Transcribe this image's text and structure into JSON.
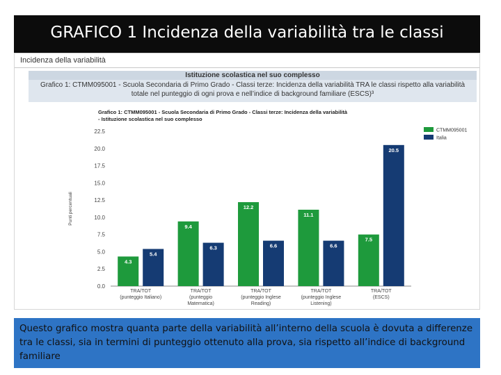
{
  "slide": {
    "title": "GRAFICO 1 Incidenza della variabilità tra le classi",
    "caption": "Questo grafico mostra quanta parte della variabilità all’interno della scuola è dovuta a differenze tra le classi, sia in termini di punteggio ottenuto alla prova, sia rispetto all’indice di background familiare"
  },
  "document": {
    "section_label": "Incidenza della variabilità",
    "header_top": "Istituzione scolastica nel suo complesso",
    "header_desc": "Grafico 1: CTMM095001 - Scuola Secondaria di Primo Grado - Classi terze: Incidenza della variabilità TRA le classi rispetto alla variabilità totale nel punteggio di ogni prova e nell’indice di background familiare (ESCS)³"
  },
  "chart_data": {
    "type": "bar",
    "title": "Grafico 1: CTMM095001 - Scuola Secondaria di Primo Grado - Classi terze: Incidenza della variabilità - Istituzione scolastica nel suo complesso",
    "ylabel": "Punti percentuali",
    "xlabel": "",
    "ylim": [
      0,
      22.5
    ],
    "yticks": [
      0.0,
      2.5,
      5.0,
      7.5,
      10.0,
      12.5,
      15.0,
      17.5,
      20.0,
      22.5
    ],
    "yticks_text": [
      "0.0",
      "2.5",
      "5.0",
      "7.5",
      "10.0",
      "12.5",
      "15.0",
      "17.5",
      "20.0",
      "22.5"
    ],
    "grid": false,
    "legend_position": "top-right",
    "categories": [
      [
        "TRA/TOT",
        "(punteggio Italiano)"
      ],
      [
        "TRA/TOT",
        "(punteggio",
        "Matematica)"
      ],
      [
        "TRA/TOT",
        "(punteggio Inglese",
        "Reading)"
      ],
      [
        "TRA/TOT",
        "(punteggio Inglese",
        "Listening)"
      ],
      [
        "TRA/TOT",
        "(ESCS)"
      ]
    ],
    "series": [
      {
        "name": "CTMM095001",
        "color": "#1e9a3c",
        "values": [
          4.3,
          9.4,
          12.2,
          11.1,
          7.5
        ],
        "labels": [
          "4.3",
          "9.4",
          "12.2",
          "11.1",
          "7.5"
        ]
      },
      {
        "name": "Italia",
        "color": "#153b73",
        "values": [
          5.4,
          6.3,
          6.6,
          6.6,
          20.5
        ],
        "labels": [
          "5.4",
          "6.3",
          "6.6",
          "6.6",
          "20.5"
        ]
      }
    ]
  }
}
